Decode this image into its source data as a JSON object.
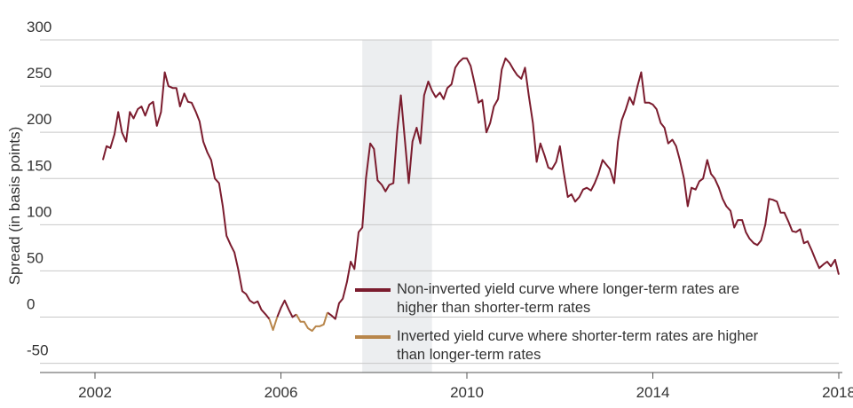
{
  "chart_data": {
    "type": "line",
    "y_label": "Spread (in basis points)",
    "xlim": [
      2002,
      2018
    ],
    "xticks": [
      2002,
      2006,
      2010,
      2014,
      2018
    ],
    "ylim": [
      -60,
      300
    ],
    "yticks": [
      300,
      250,
      200,
      150,
      100,
      50,
      0,
      -50
    ],
    "grid": true,
    "shaded_x": [
      2007.75,
      2009.25
    ],
    "legend": "bottom",
    "x": [
      2002.17,
      2002.25,
      2002.33,
      2002.42,
      2002.5,
      2002.58,
      2002.67,
      2002.75,
      2002.83,
      2002.92,
      2003,
      2003.08,
      2003.17,
      2003.25,
      2003.33,
      2003.42,
      2003.5,
      2003.58,
      2003.67,
      2003.75,
      2003.83,
      2003.92,
      2004,
      2004.08,
      2004.17,
      2004.25,
      2004.33,
      2004.42,
      2004.5,
      2004.58,
      2004.67,
      2004.75,
      2004.83,
      2004.92,
      2005,
      2005.08,
      2005.17,
      2005.25,
      2005.33,
      2005.42,
      2005.5,
      2005.58,
      2005.67,
      2005.75,
      2005.83,
      2005.92,
      2006,
      2006.08,
      2006.17,
      2006.25,
      2006.33,
      2006.42,
      2006.5,
      2006.58,
      2006.67,
      2006.75,
      2006.83,
      2006.92,
      2007,
      2007.08,
      2007.17,
      2007.25,
      2007.33,
      2007.42,
      2007.5,
      2007.58,
      2007.67,
      2007.75,
      2007.83,
      2007.92,
      2008,
      2008.08,
      2008.17,
      2008.25,
      2008.33,
      2008.42,
      2008.5,
      2008.58,
      2008.67,
      2008.75,
      2008.83,
      2008.92,
      2009,
      2009.08,
      2009.17,
      2009.25,
      2009.33,
      2009.42,
      2009.5,
      2009.58,
      2009.67,
      2009.75,
      2009.83,
      2009.92,
      2010,
      2010.08,
      2010.17,
      2010.25,
      2010.33,
      2010.42,
      2010.5,
      2010.58,
      2010.67,
      2010.75,
      2010.83,
      2010.92,
      2011,
      2011.08,
      2011.17,
      2011.25,
      2011.33,
      2011.42,
      2011.5,
      2011.58,
      2011.67,
      2011.75,
      2011.83,
      2011.92,
      2012,
      2012.08,
      2012.17,
      2012.25,
      2012.33,
      2012.42,
      2012.5,
      2012.58,
      2012.67,
      2012.75,
      2012.83,
      2012.92,
      2013,
      2013.08,
      2013.17,
      2013.25,
      2013.33,
      2013.42,
      2013.5,
      2013.58,
      2013.67,
      2013.75,
      2013.83,
      2013.92,
      2014,
      2014.08,
      2014.17,
      2014.25,
      2014.33,
      2014.42,
      2014.5,
      2014.58,
      2014.67,
      2014.75,
      2014.83,
      2014.92,
      2015,
      2015.08,
      2015.17,
      2015.25,
      2015.33,
      2015.42,
      2015.5,
      2015.58,
      2015.67,
      2015.75,
      2015.83,
      2015.92,
      2016,
      2016.08,
      2016.17,
      2016.25,
      2016.33,
      2016.42,
      2016.5,
      2016.58,
      2016.67,
      2016.75,
      2016.83,
      2016.92,
      2017,
      2017.08,
      2017.17,
      2017.25,
      2017.33,
      2017.42,
      2017.5,
      2017.58,
      2017.67,
      2017.75,
      2017.83,
      2017.92,
      2018
    ],
    "series": [
      {
        "name": "Non-inverted yield curve where longer-term rates are higher than shorter-term rates",
        "color": "#7b1c2e",
        "values": [
          170,
          185,
          183,
          198,
          222,
          200,
          190,
          222,
          215,
          225,
          228,
          218,
          230,
          233,
          207,
          222,
          265,
          250,
          248,
          248,
          228,
          242,
          233,
          232,
          222,
          212,
          190,
          178,
          170,
          150,
          145,
          120,
          88,
          78,
          70,
          52,
          28,
          25,
          18,
          15,
          17,
          8,
          3,
          -2,
          null,
          0,
          10,
          18,
          8,
          0,
          3,
          null,
          null,
          null,
          null,
          null,
          null,
          null,
          5,
          2,
          -2,
          15,
          20,
          38,
          60,
          52,
          92,
          97,
          150,
          188,
          182,
          148,
          143,
          136,
          143,
          145,
          200,
          240,
          190,
          145,
          190,
          205,
          188,
          240,
          255,
          245,
          238,
          243,
          236,
          248,
          252,
          270,
          276,
          280,
          280,
          272,
          252,
          232,
          235,
          200,
          210,
          228,
          236,
          268,
          280,
          275,
          268,
          262,
          258,
          270,
          240,
          210,
          168,
          188,
          175,
          162,
          160,
          168,
          185,
          158,
          130,
          133,
          125,
          130,
          138,
          140,
          137,
          145,
          155,
          170,
          165,
          160,
          145,
          190,
          213,
          225,
          238,
          230,
          250,
          265,
          232,
          232,
          230,
          225,
          210,
          205,
          188,
          192,
          185,
          170,
          150,
          120,
          140,
          138,
          147,
          150,
          170,
          155,
          150,
          140,
          128,
          120,
          115,
          97,
          105,
          105,
          92,
          85,
          80,
          78,
          83,
          100,
          128,
          127,
          125,
          113,
          113,
          103,
          93,
          92,
          95,
          80,
          82,
          72,
          62,
          53,
          57,
          60,
          55,
          62,
          46
        ]
      },
      {
        "name": "Inverted yield curve where shorter-term rates are higher than longer-term rates",
        "color": "#b8864b",
        "values": [
          null,
          null,
          null,
          null,
          null,
          null,
          null,
          null,
          null,
          null,
          null,
          null,
          null,
          null,
          null,
          null,
          null,
          null,
          null,
          null,
          null,
          null,
          null,
          null,
          null,
          null,
          null,
          null,
          null,
          null,
          null,
          null,
          null,
          null,
          null,
          null,
          null,
          null,
          null,
          null,
          null,
          null,
          null,
          -2,
          -14,
          0,
          null,
          null,
          null,
          null,
          3,
          -5,
          -5,
          -12,
          -15,
          -10,
          -10,
          -8,
          5,
          null,
          null,
          null,
          null,
          null,
          null,
          null,
          null,
          null,
          null,
          null,
          null,
          null,
          null,
          null,
          null,
          null,
          null,
          null,
          null,
          null,
          null,
          null,
          null,
          null,
          null,
          null,
          null,
          null,
          null,
          null,
          null,
          null,
          null,
          null,
          null,
          null,
          null,
          null,
          null,
          null,
          null,
          null,
          null,
          null,
          null,
          null,
          null,
          null,
          null,
          null,
          null,
          null,
          null,
          null,
          null,
          null,
          null,
          null,
          null,
          null,
          null,
          null,
          null,
          null,
          null,
          null,
          null,
          null,
          null,
          null,
          null,
          null,
          null,
          null,
          null,
          null,
          null,
          null,
          null,
          null,
          null,
          null,
          null,
          null,
          null,
          null,
          null,
          null,
          null,
          null,
          null,
          null,
          null,
          null,
          null,
          null,
          null,
          null,
          null,
          null,
          null,
          null,
          null,
          null,
          null,
          null,
          null,
          null,
          null,
          null,
          null,
          null,
          null,
          null,
          null,
          null,
          null,
          null,
          null,
          null,
          null,
          null,
          null,
          null,
          null,
          null,
          null,
          null,
          null,
          null,
          null
        ]
      }
    ]
  }
}
